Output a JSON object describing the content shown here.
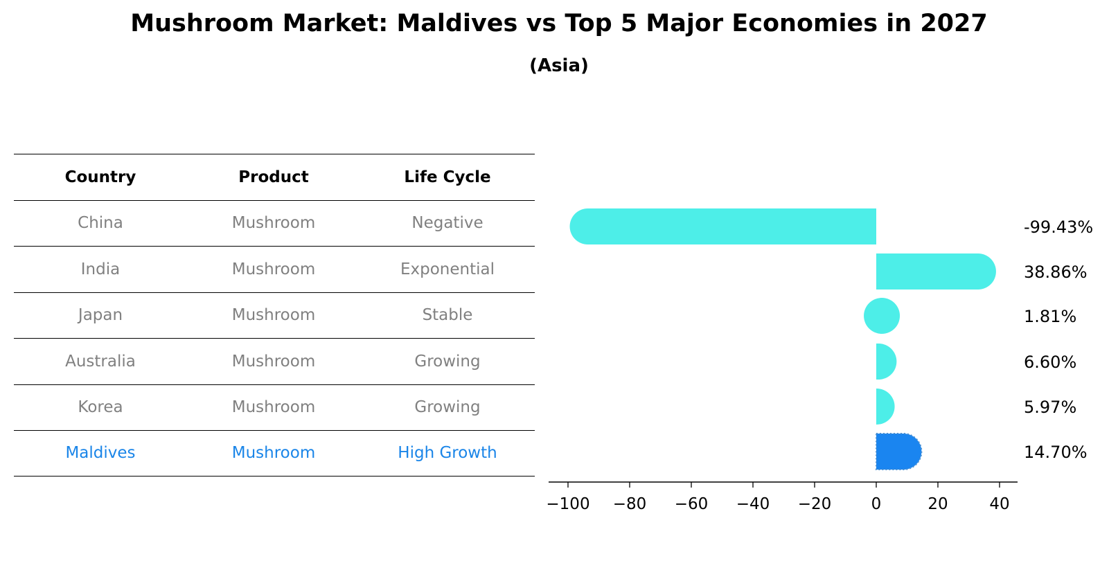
{
  "title": "Mushroom Market: Maldives vs Top 5 Major Economies in 2027",
  "subtitle": "(Asia)",
  "table": {
    "headers": [
      "Country",
      "Product",
      "Life Cycle"
    ],
    "rows": [
      [
        "China",
        "Mushroom",
        "Negative"
      ],
      [
        "India",
        "Mushroom",
        "Exponential"
      ],
      [
        "Japan",
        "Mushroom",
        "Stable"
      ],
      [
        "Australia",
        "Mushroom",
        "Growing"
      ],
      [
        "Korea",
        "Mushroom",
        "Growing"
      ],
      [
        "Maldives",
        "Mushroom",
        "High Growth"
      ]
    ]
  },
  "colors": {
    "bar": "#4deee8",
    "highlight_bar": "#1a85f0",
    "highlight_text": "#1a85e8",
    "muted_text": "#808080"
  },
  "chart_data": {
    "type": "bar",
    "orientation": "horizontal",
    "title": "Mushroom Market: Maldives vs Top 5 Major Economies in 2027",
    "subtitle": "(Asia)",
    "categories": [
      "China",
      "India",
      "Japan",
      "Australia",
      "Korea",
      "Maldives"
    ],
    "values": [
      -99.43,
      38.86,
      1.81,
      6.6,
      5.97,
      14.7
    ],
    "value_labels": [
      "-99.43%",
      "38.86%",
      "1.81%",
      "6.60%",
      "5.97%",
      "14.70%"
    ],
    "highlight": "Maldives",
    "xlim": [
      -105,
      45
    ],
    "xticks": [
      -100,
      -80,
      -60,
      -40,
      -20,
      0,
      20,
      40
    ],
    "xtick_labels": [
      "−100",
      "−80",
      "−60",
      "−40",
      "−20",
      "0",
      "20",
      "40"
    ],
    "xlabel": "",
    "ylabel": "",
    "grid": false
  }
}
